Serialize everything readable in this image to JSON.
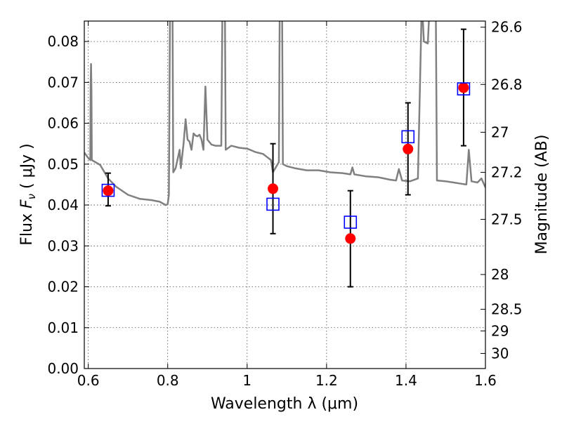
{
  "chart_data": {
    "type": "scatter",
    "xlabel": "Wavelength  λ (μm)",
    "ylabel": "Flux  F_ν  ( μJy )",
    "ylabel_parts": {
      "prefix": "Flux  ",
      "symbol": "F",
      "subscript": "ν",
      "suffix": "  ( μJy )"
    },
    "ylabel_right": "Magnitude (AB)",
    "xlim": [
      0.59,
      1.6
    ],
    "ylim": [
      0.0,
      0.085
    ],
    "x_ticks": [
      0.6,
      0.8,
      1.0,
      1.2,
      1.4,
      1.6
    ],
    "x_tick_labels": [
      "0.6",
      "0.8",
      "1",
      "1.2",
      "1.4",
      "1.6"
    ],
    "y_ticks": [
      0.0,
      0.01,
      0.02,
      0.03,
      0.04,
      0.05,
      0.06,
      0.07,
      0.08
    ],
    "y_tick_labels": [
      "0.00",
      "0.01",
      "0.02",
      "0.03",
      "0.04",
      "0.05",
      "0.06",
      "0.07",
      "0.08"
    ],
    "right_ticks": [
      {
        "label": "26.6",
        "flux": 0.0835
      },
      {
        "label": "26.8",
        "flux": 0.0695
      },
      {
        "label": "27",
        "flux": 0.0578
      },
      {
        "label": "27.2",
        "flux": 0.048
      },
      {
        "label": "27.5",
        "flux": 0.0365
      },
      {
        "label": "28",
        "flux": 0.023
      },
      {
        "label": "28.5",
        "flux": 0.0145
      },
      {
        "label": "29",
        "flux": 0.0092
      },
      {
        "label": "30",
        "flux": 0.0037
      }
    ],
    "grid": true,
    "series": [
      {
        "name": "observed",
        "marker": "circle",
        "color": "#ff0000",
        "points": [
          {
            "x": 0.65,
            "y": 0.0435,
            "yerr_low": 0.0398,
            "yerr_high": 0.0478
          },
          {
            "x": 1.065,
            "y": 0.044,
            "yerr_low": 0.033,
            "yerr_high": 0.055
          },
          {
            "x": 1.26,
            "y": 0.0318,
            "yerr_low": 0.02,
            "yerr_high": 0.0435
          },
          {
            "x": 1.405,
            "y": 0.0537,
            "yerr_low": 0.0425,
            "yerr_high": 0.065
          },
          {
            "x": 1.545,
            "y": 0.0687,
            "yerr_low": 0.0545,
            "yerr_high": 0.083
          }
        ]
      },
      {
        "name": "model",
        "marker": "square-open",
        "color": "#0000ff",
        "points": [
          {
            "x": 0.65,
            "y": 0.0436
          },
          {
            "x": 1.065,
            "y": 0.0402
          },
          {
            "x": 1.26,
            "y": 0.0358
          },
          {
            "x": 1.405,
            "y": 0.0567
          },
          {
            "x": 1.545,
            "y": 0.0684
          }
        ]
      },
      {
        "name": "spectrum",
        "type": "line",
        "color": "#808080",
        "points": [
          [
            0.59,
            0.0528
          ],
          [
            0.6,
            0.0515
          ],
          [
            0.605,
            0.051
          ],
          [
            0.606,
            0.069
          ],
          [
            0.607,
            0.0745
          ],
          [
            0.608,
            0.068
          ],
          [
            0.609,
            0.051
          ],
          [
            0.63,
            0.0498
          ],
          [
            0.65,
            0.0465
          ],
          [
            0.67,
            0.0445
          ],
          [
            0.7,
            0.0425
          ],
          [
            0.73,
            0.0415
          ],
          [
            0.76,
            0.0412
          ],
          [
            0.78,
            0.0408
          ],
          [
            0.795,
            0.04
          ],
          [
            0.8,
            0.0402
          ],
          [
            0.803,
            0.0425
          ],
          [
            0.806,
            0.09
          ],
          [
            0.812,
            0.09
          ],
          [
            0.814,
            0.048
          ],
          [
            0.82,
            0.049
          ],
          [
            0.83,
            0.0535
          ],
          [
            0.833,
            0.049
          ],
          [
            0.84,
            0.055
          ],
          [
            0.845,
            0.061
          ],
          [
            0.85,
            0.056
          ],
          [
            0.855,
            0.0555
          ],
          [
            0.86,
            0.0535
          ],
          [
            0.865,
            0.0575
          ],
          [
            0.87,
            0.057
          ],
          [
            0.875,
            0.0568
          ],
          [
            0.88,
            0.0572
          ],
          [
            0.885,
            0.056
          ],
          [
            0.89,
            0.0535
          ],
          [
            0.895,
            0.069
          ],
          [
            0.9,
            0.056
          ],
          [
            0.91,
            0.0548
          ],
          [
            0.92,
            0.0545
          ],
          [
            0.935,
            0.0545
          ],
          [
            0.938,
            0.09
          ],
          [
            0.944,
            0.09
          ],
          [
            0.946,
            0.0535
          ],
          [
            0.96,
            0.0545
          ],
          [
            0.98,
            0.054
          ],
          [
            1.0,
            0.0538
          ],
          [
            1.02,
            0.053
          ],
          [
            1.04,
            0.0525
          ],
          [
            1.06,
            0.051
          ],
          [
            1.065,
            0.048
          ],
          [
            1.08,
            0.0505
          ],
          [
            1.082,
            0.09
          ],
          [
            1.088,
            0.09
          ],
          [
            1.09,
            0.05
          ],
          [
            1.1,
            0.0495
          ],
          [
            1.12,
            0.049
          ],
          [
            1.15,
            0.0485
          ],
          [
            1.18,
            0.0485
          ],
          [
            1.21,
            0.048
          ],
          [
            1.24,
            0.0478
          ],
          [
            1.26,
            0.0475
          ],
          [
            1.265,
            0.0492
          ],
          [
            1.27,
            0.0475
          ],
          [
            1.3,
            0.047
          ],
          [
            1.33,
            0.0468
          ],
          [
            1.36,
            0.0462
          ],
          [
            1.375,
            0.046
          ],
          [
            1.382,
            0.0488
          ],
          [
            1.39,
            0.046
          ],
          [
            1.41,
            0.0458
          ],
          [
            1.43,
            0.0465
          ],
          [
            1.44,
            0.09
          ],
          [
            1.445,
            0.08
          ],
          [
            1.455,
            0.0795
          ],
          [
            1.46,
            0.09
          ],
          [
            1.475,
            0.09
          ],
          [
            1.478,
            0.046
          ],
          [
            1.5,
            0.0458
          ],
          [
            1.52,
            0.0455
          ],
          [
            1.54,
            0.0452
          ],
          [
            1.552,
            0.045
          ],
          [
            1.558,
            0.0535
          ],
          [
            1.565,
            0.0458
          ],
          [
            1.58,
            0.0455
          ],
          [
            1.59,
            0.0465
          ],
          [
            1.6,
            0.0443
          ]
        ]
      }
    ]
  }
}
